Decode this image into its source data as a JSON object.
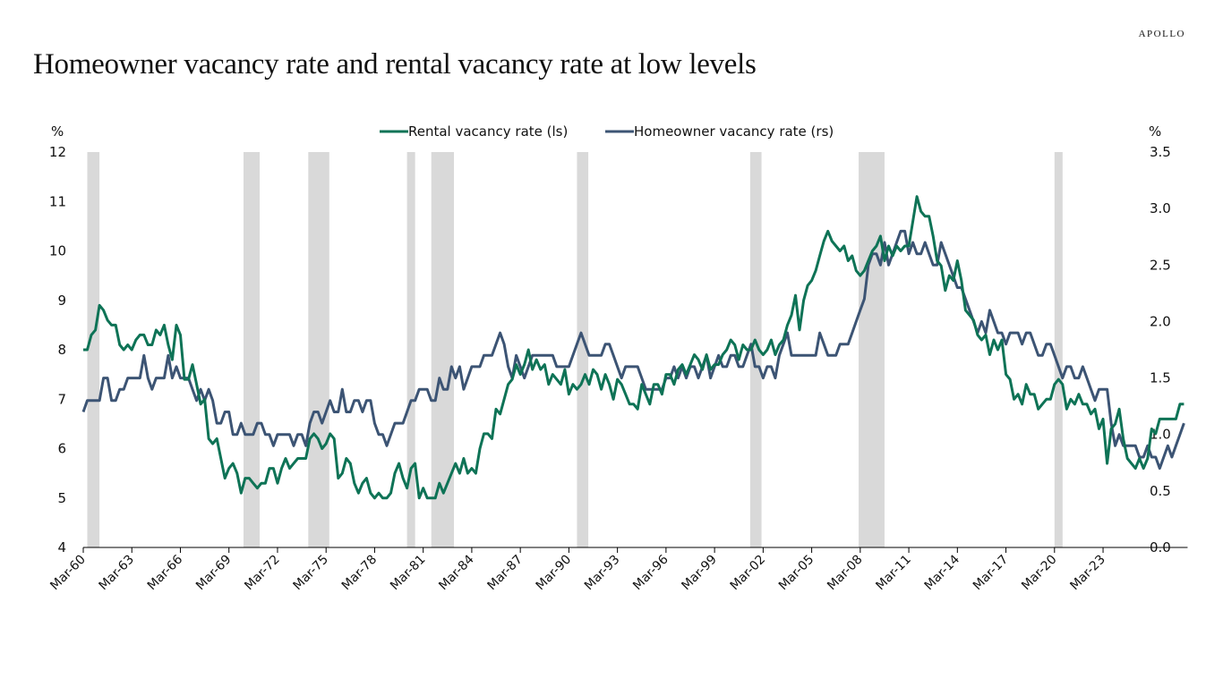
{
  "brand": "APOLLO",
  "title": "Homeowner vacancy rate and rental vacancy rate at low levels",
  "chart_data": {
    "type": "line",
    "title": "Homeowner vacancy rate and rental vacancy rate at low levels",
    "xlabel": "",
    "ylabel_left": "%",
    "ylabel_right": "%",
    "frequency": "quarterly",
    "start": "1960Q1",
    "y_left": {
      "min": 4,
      "max": 12,
      "ticks": [
        "4",
        "5",
        "6",
        "7",
        "8",
        "9",
        "10",
        "11",
        "12"
      ]
    },
    "y_right": {
      "min": 0,
      "max": 3.5,
      "ticks": [
        "0.0",
        "0.5",
        "1.0",
        "1.5",
        "2.0",
        "2.5",
        "3.0",
        "3.5"
      ]
    },
    "x_ticks": [
      "Mar-60",
      "Mar-63",
      "Mar-66",
      "Mar-69",
      "Mar-72",
      "Mar-75",
      "Mar-78",
      "Mar-81",
      "Mar-84",
      "Mar-87",
      "Mar-90",
      "Mar-93",
      "Mar-96",
      "Mar-99",
      "Mar-02",
      "Mar-05",
      "Mar-08",
      "Mar-11",
      "Mar-14",
      "Mar-17",
      "Mar-20",
      "Mar-23"
    ],
    "x_tick_years": [
      1960,
      1963,
      1966,
      1969,
      1972,
      1975,
      1978,
      1981,
      1984,
      1987,
      1990,
      1993,
      1996,
      1999,
      2002,
      2005,
      2008,
      2011,
      2014,
      2017,
      2020,
      2023
    ],
    "legend": {
      "position": "top-center",
      "entries": [
        "Rental vacancy rate (ls)",
        "Homeowner vacancy rate (rs)"
      ]
    },
    "grid": false,
    "recessions": [
      [
        1960.25,
        1961.0
      ],
      [
        1969.9,
        1970.9
      ],
      [
        1973.9,
        1975.2
      ],
      [
        1980.0,
        1980.5
      ],
      [
        1981.5,
        1982.9
      ],
      [
        1990.5,
        1991.2
      ],
      [
        2001.2,
        2001.9
      ],
      [
        2007.9,
        2009.5
      ],
      [
        2020.0,
        2020.5
      ]
    ],
    "series": [
      {
        "name": "Rental vacancy rate (ls)",
        "axis": "left",
        "color": "#0e7356",
        "values": [
          8.0,
          8.0,
          8.3,
          8.4,
          8.9,
          8.8,
          8.6,
          8.5,
          8.5,
          8.1,
          8.0,
          8.1,
          8.0,
          8.2,
          8.3,
          8.3,
          8.1,
          8.1,
          8.4,
          8.3,
          8.5,
          8.1,
          7.8,
          8.5,
          8.3,
          7.4,
          7.4,
          7.7,
          7.3,
          6.9,
          7.0,
          6.2,
          6.1,
          6.2,
          5.8,
          5.4,
          5.6,
          5.7,
          5.5,
          5.1,
          5.4,
          5.4,
          5.3,
          5.2,
          5.3,
          5.3,
          5.6,
          5.6,
          5.3,
          5.6,
          5.8,
          5.6,
          5.7,
          5.8,
          5.8,
          5.8,
          6.2,
          6.3,
          6.2,
          6.0,
          6.1,
          6.3,
          6.2,
          5.4,
          5.5,
          5.8,
          5.7,
          5.3,
          5.1,
          5.3,
          5.4,
          5.1,
          5.0,
          5.1,
          5.0,
          5.0,
          5.1,
          5.5,
          5.7,
          5.4,
          5.2,
          5.6,
          5.7,
          5.0,
          5.2,
          5.0,
          5.0,
          5.0,
          5.3,
          5.1,
          5.3,
          5.5,
          5.7,
          5.5,
          5.8,
          5.5,
          5.6,
          5.5,
          6.0,
          6.3,
          6.3,
          6.2,
          6.8,
          6.7,
          7.0,
          7.3,
          7.4,
          7.7,
          7.5,
          7.7,
          8.0,
          7.6,
          7.8,
          7.6,
          7.7,
          7.3,
          7.5,
          7.4,
          7.3,
          7.6,
          7.1,
          7.3,
          7.2,
          7.3,
          7.5,
          7.3,
          7.6,
          7.5,
          7.2,
          7.5,
          7.3,
          7.0,
          7.4,
          7.3,
          7.1,
          6.9,
          6.9,
          6.8,
          7.3,
          7.1,
          6.9,
          7.3,
          7.3,
          7.1,
          7.5,
          7.5,
          7.3,
          7.6,
          7.7,
          7.5,
          7.7,
          7.9,
          7.8,
          7.6,
          7.9,
          7.6,
          7.7,
          7.7,
          7.9,
          8.0,
          8.2,
          8.1,
          7.8,
          8.1,
          8.0,
          8.0,
          8.2,
          8.0,
          7.9,
          8.0,
          8.2,
          7.9,
          8.1,
          8.2,
          8.5,
          8.7,
          9.1,
          8.4,
          9.0,
          9.3,
          9.4,
          9.6,
          9.9,
          10.2,
          10.4,
          10.2,
          10.1,
          10.0,
          10.1,
          9.8,
          9.9,
          9.6,
          9.5,
          9.6,
          9.8,
          10.0,
          10.1,
          10.3,
          9.8,
          10.1,
          9.9,
          10.1,
          10.0,
          10.1,
          10.1,
          10.6,
          11.1,
          10.8,
          10.7,
          10.7,
          10.3,
          9.8,
          9.7,
          9.2,
          9.5,
          9.4,
          9.8,
          9.4,
          8.8,
          8.7,
          8.6,
          8.3,
          8.2,
          8.3,
          7.9,
          8.2,
          8.0,
          8.2,
          7.5,
          7.4,
          7.0,
          7.1,
          6.9,
          7.3,
          7.1,
          7.1,
          6.8,
          6.9,
          7.0,
          7.0,
          7.3,
          7.4,
          7.3,
          6.8,
          7.0,
          6.9,
          7.1,
          6.9,
          6.9,
          6.7,
          6.8,
          6.4,
          6.6,
          5.7,
          6.4,
          6.5,
          6.8,
          6.2,
          5.8,
          5.7,
          5.6,
          5.8,
          5.6,
          5.8,
          6.4,
          6.3,
          6.6,
          6.6,
          6.6,
          6.6,
          6.6,
          6.9,
          6.9
        ]
      },
      {
        "name": "Homeowner vacancy rate (rs)",
        "axis": "right",
        "color": "#3c5474",
        "values": [
          1.2,
          1.3,
          1.3,
          1.3,
          1.3,
          1.5,
          1.5,
          1.3,
          1.3,
          1.4,
          1.4,
          1.5,
          1.5,
          1.5,
          1.5,
          1.7,
          1.5,
          1.4,
          1.5,
          1.5,
          1.5,
          1.7,
          1.5,
          1.6,
          1.5,
          1.5,
          1.5,
          1.4,
          1.3,
          1.4,
          1.3,
          1.4,
          1.3,
          1.1,
          1.1,
          1.2,
          1.2,
          1.0,
          1.0,
          1.1,
          1.0,
          1.0,
          1.0,
          1.1,
          1.1,
          1.0,
          1.0,
          0.9,
          1.0,
          1.0,
          1.0,
          1.0,
          0.9,
          1.0,
          1.0,
          0.9,
          1.1,
          1.2,
          1.2,
          1.1,
          1.2,
          1.3,
          1.2,
          1.2,
          1.4,
          1.2,
          1.2,
          1.3,
          1.3,
          1.2,
          1.3,
          1.3,
          1.1,
          1.0,
          1.0,
          0.9,
          1.0,
          1.1,
          1.1,
          1.1,
          1.2,
          1.3,
          1.3,
          1.4,
          1.4,
          1.4,
          1.3,
          1.3,
          1.5,
          1.4,
          1.4,
          1.6,
          1.5,
          1.6,
          1.4,
          1.5,
          1.6,
          1.6,
          1.6,
          1.7,
          1.7,
          1.7,
          1.8,
          1.9,
          1.8,
          1.6,
          1.5,
          1.7,
          1.6,
          1.5,
          1.6,
          1.7,
          1.7,
          1.7,
          1.7,
          1.7,
          1.7,
          1.6,
          1.6,
          1.6,
          1.6,
          1.7,
          1.8,
          1.9,
          1.8,
          1.7,
          1.7,
          1.7,
          1.7,
          1.8,
          1.8,
          1.7,
          1.6,
          1.5,
          1.6,
          1.6,
          1.6,
          1.6,
          1.5,
          1.4,
          1.4,
          1.4,
          1.4,
          1.4,
          1.5,
          1.5,
          1.6,
          1.5,
          1.6,
          1.5,
          1.6,
          1.6,
          1.5,
          1.6,
          1.7,
          1.5,
          1.6,
          1.7,
          1.6,
          1.6,
          1.7,
          1.7,
          1.6,
          1.6,
          1.7,
          1.8,
          1.6,
          1.6,
          1.5,
          1.6,
          1.6,
          1.5,
          1.7,
          1.8,
          1.9,
          1.7,
          1.7,
          1.7,
          1.7,
          1.7,
          1.7,
          1.7,
          1.9,
          1.8,
          1.7,
          1.7,
          1.7,
          1.8,
          1.8,
          1.8,
          1.9,
          2.0,
          2.1,
          2.2,
          2.5,
          2.6,
          2.6,
          2.5,
          2.7,
          2.5,
          2.6,
          2.7,
          2.8,
          2.8,
          2.6,
          2.7,
          2.6,
          2.6,
          2.7,
          2.6,
          2.5,
          2.5,
          2.7,
          2.6,
          2.5,
          2.4,
          2.3,
          2.3,
          2.2,
          2.1,
          2.0,
          1.9,
          2.0,
          1.9,
          2.1,
          2.0,
          1.9,
          1.9,
          1.8,
          1.9,
          1.9,
          1.9,
          1.8,
          1.9,
          1.9,
          1.8,
          1.7,
          1.7,
          1.8,
          1.8,
          1.7,
          1.6,
          1.5,
          1.6,
          1.6,
          1.5,
          1.5,
          1.6,
          1.5,
          1.4,
          1.3,
          1.4,
          1.4,
          1.4,
          1.1,
          0.9,
          1.0,
          0.9,
          0.9,
          0.9,
          0.9,
          0.8,
          0.8,
          0.9,
          0.8,
          0.8,
          0.7,
          0.8,
          0.9,
          0.8,
          0.9,
          1.0,
          1.1
        ]
      }
    ]
  }
}
